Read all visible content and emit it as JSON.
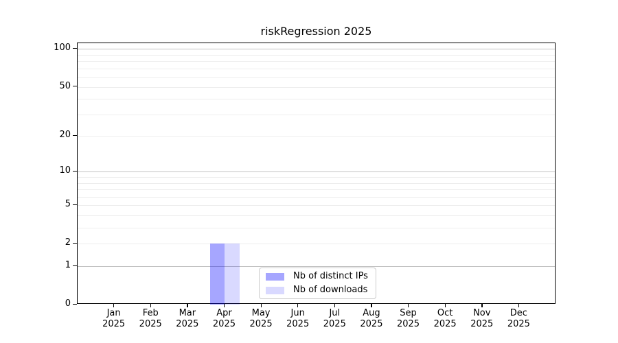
{
  "chart_data": {
    "type": "bar",
    "title": "riskRegression 2025",
    "x_categories": [
      {
        "month": "Jan",
        "year": "2025"
      },
      {
        "month": "Feb",
        "year": "2025"
      },
      {
        "month": "Mar",
        "year": "2025"
      },
      {
        "month": "Apr",
        "year": "2025"
      },
      {
        "month": "May",
        "year": "2025"
      },
      {
        "month": "Jun",
        "year": "2025"
      },
      {
        "month": "Jul",
        "year": "2025"
      },
      {
        "month": "Aug",
        "year": "2025"
      },
      {
        "month": "Sep",
        "year": "2025"
      },
      {
        "month": "Oct",
        "year": "2025"
      },
      {
        "month": "Nov",
        "year": "2025"
      },
      {
        "month": "Dec",
        "year": "2025"
      }
    ],
    "series": [
      {
        "name": "Nb of distinct IPs",
        "color": "rgba(0,0,255,0.35)",
        "values": [
          0,
          0,
          0,
          2,
          0,
          0,
          0,
          0,
          0,
          0,
          0,
          0
        ]
      },
      {
        "name": "Nb of downloads",
        "color": "rgba(0,0,255,0.15)",
        "values": [
          0,
          0,
          0,
          2,
          0,
          0,
          0,
          0,
          0,
          0,
          0,
          0
        ]
      }
    ],
    "y_axis": {
      "scale": "log1p",
      "tick_values": [
        0,
        1,
        2,
        5,
        10,
        20,
        50,
        100
      ],
      "max_value": 111
    },
    "grid": {
      "major_values": [
        1,
        10,
        100
      ],
      "minor_values": [
        2,
        3,
        4,
        5,
        6,
        7,
        8,
        9,
        20,
        30,
        40,
        50,
        60,
        70,
        80,
        90
      ],
      "major_color": "#c2c2c2",
      "minor_color": "#ededed"
    },
    "legend": {
      "position": "lower center"
    },
    "bar_width_fraction": 0.4
  }
}
